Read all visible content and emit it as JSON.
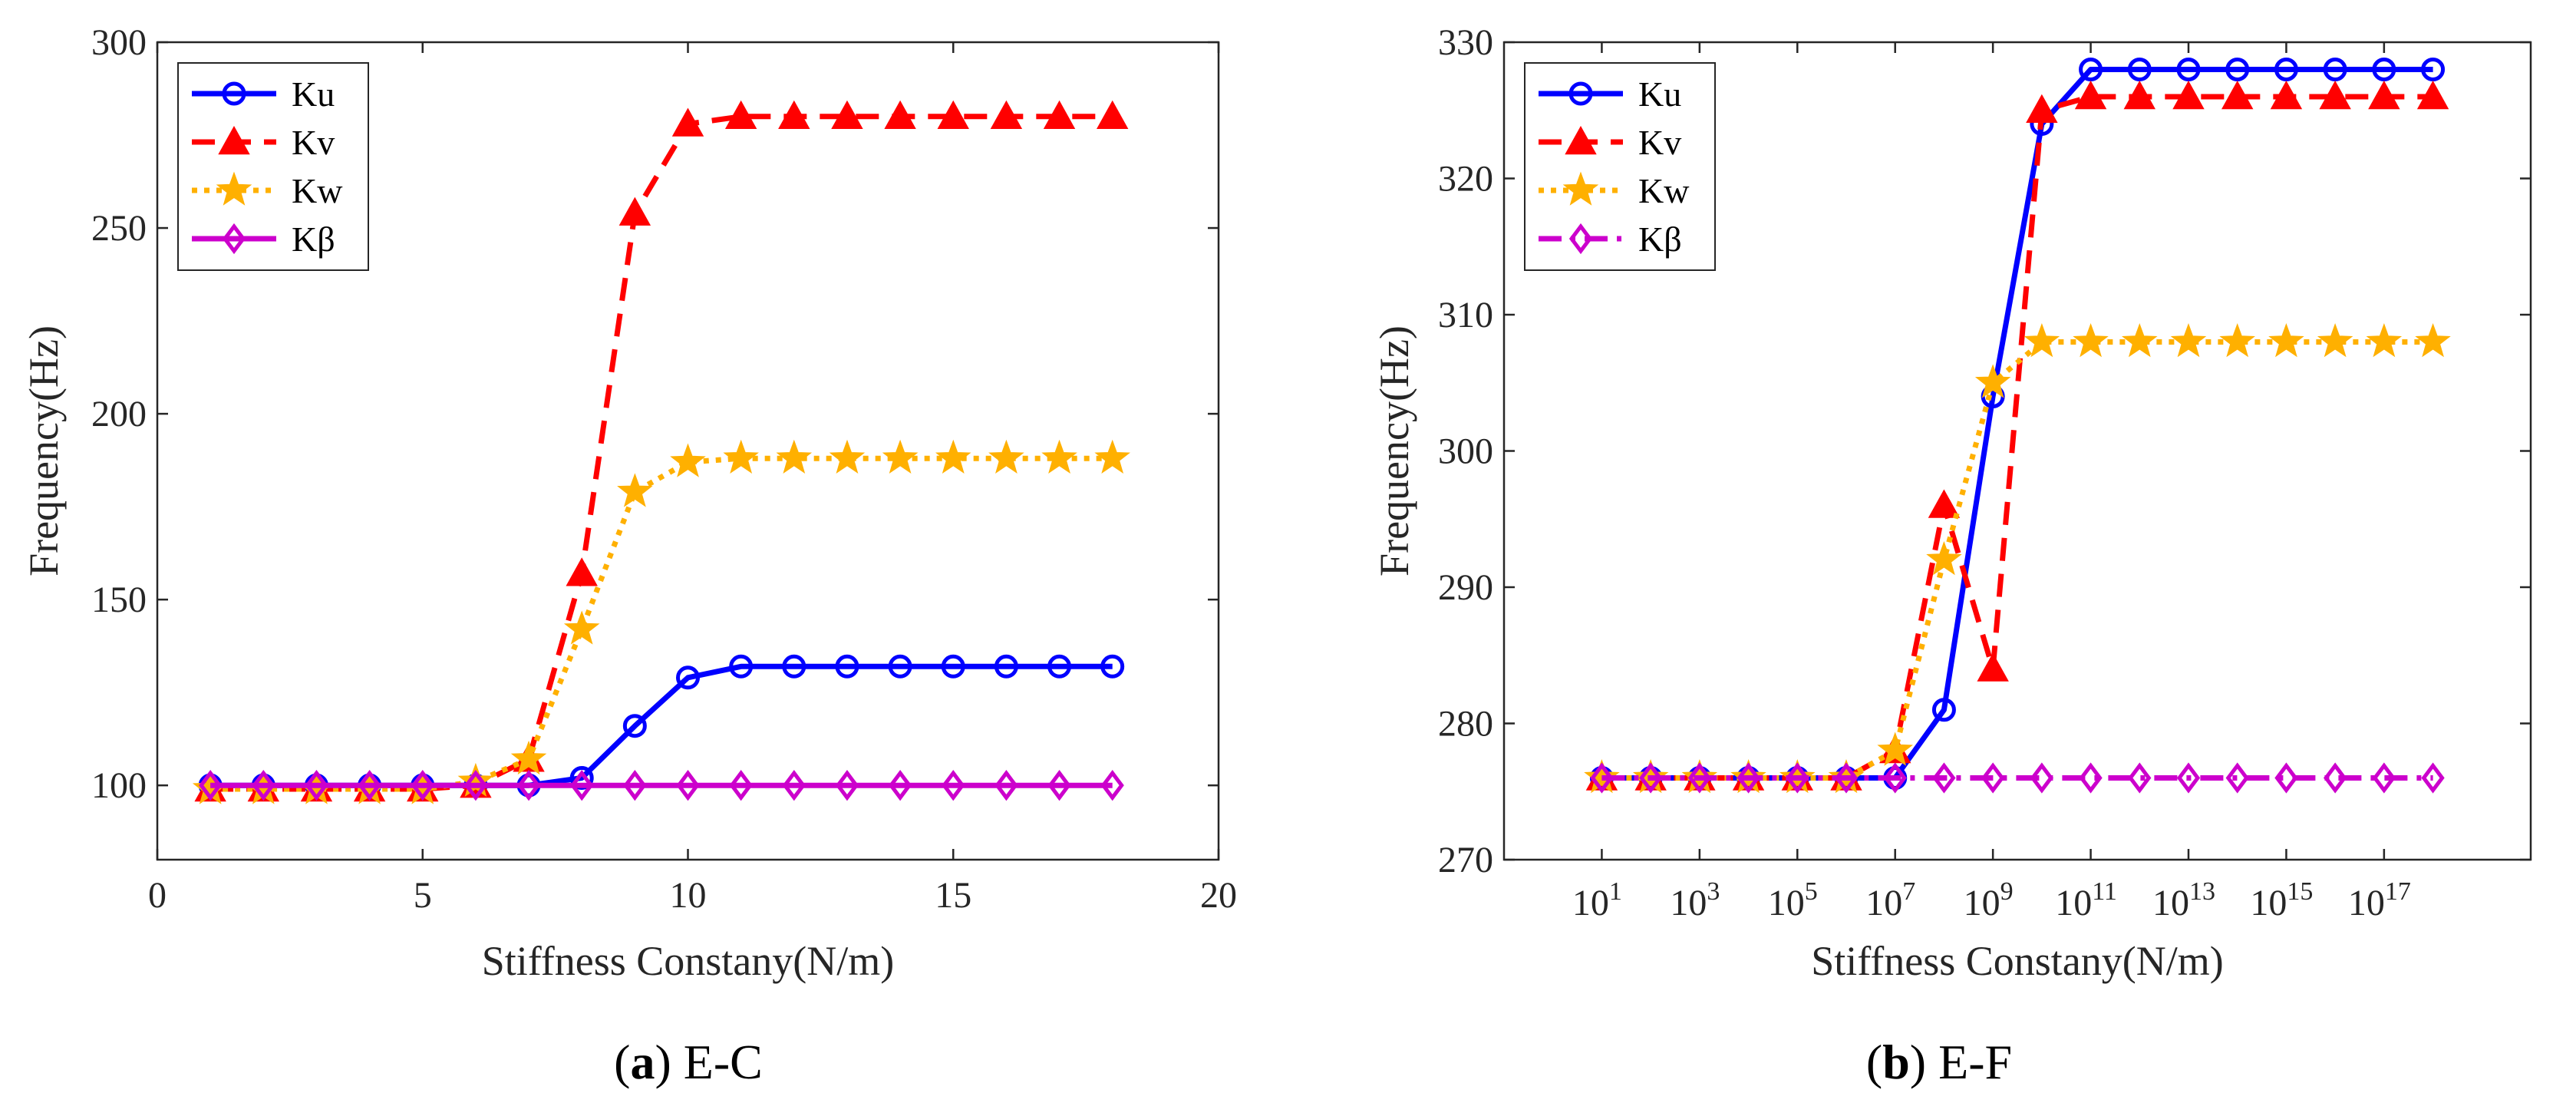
{
  "colors": {
    "Ku": "#0000ff",
    "Kv": "#ff0000",
    "Kw": "#ffb000",
    "Kbeta": "#cc00cc",
    "axis": "#262626"
  },
  "chart_data": [
    {
      "type": "line",
      "id": "a",
      "caption_label": "a",
      "caption_text": "E-C",
      "xlabel": "Stiffness Constany(N/m)",
      "ylabel": "Frequency(Hz)",
      "xlim": [
        0,
        20
      ],
      "ylim": [
        80,
        300
      ],
      "x_scale": "linear",
      "xticks": [
        0,
        5,
        10,
        15,
        20
      ],
      "xtick_labels": [
        "0",
        "5",
        "10",
        "15",
        "20"
      ],
      "yticks": [
        100,
        150,
        200,
        250,
        300
      ],
      "ytick_labels": [
        "100",
        "150",
        "200",
        "250",
        "300"
      ],
      "legend_position": "top-left",
      "x": [
        1,
        2,
        3,
        4,
        5,
        6,
        7,
        8,
        9,
        10,
        11,
        12,
        13,
        14,
        15,
        16,
        17,
        18
      ],
      "series": [
        {
          "name": "Ku",
          "key": "Ku",
          "marker": "circle",
          "dash": "solid",
          "values": [
            100,
            100,
            100,
            100,
            100,
            100,
            100,
            102,
            116,
            129,
            132,
            132,
            132,
            132,
            132,
            132,
            132,
            132
          ]
        },
        {
          "name": "Kv",
          "key": "Kv",
          "marker": "triangle",
          "dash": "dashed",
          "values": [
            99,
            99,
            99,
            99,
            99,
            100,
            107,
            157,
            254,
            278,
            280,
            280,
            280,
            280,
            280,
            280,
            280,
            280
          ]
        },
        {
          "name": "Kw",
          "key": "Kw",
          "marker": "star",
          "dash": "dotted",
          "values": [
            99,
            99,
            99,
            99,
            99,
            101,
            107,
            142,
            179,
            187,
            188,
            188,
            188,
            188,
            188,
            188,
            188,
            188
          ]
        },
        {
          "name": "Kβ",
          "key": "Kbeta",
          "marker": "diamond",
          "dash": "solid",
          "values": [
            100,
            100,
            100,
            100,
            100,
            100,
            100,
            100,
            100,
            100,
            100,
            100,
            100,
            100,
            100,
            100,
            100,
            100
          ]
        }
      ]
    },
    {
      "type": "line",
      "id": "b",
      "caption_label": "b",
      "caption_text": "E-F",
      "xlabel": "Stiffness Constany(N/m)",
      "ylabel": "Frequency(Hz)",
      "xlim": [
        -1,
        20
      ],
      "ylim": [
        270,
        330
      ],
      "x_scale": "log10 exponent",
      "xticks": [
        1,
        3,
        5,
        7,
        9,
        11,
        13,
        15,
        17
      ],
      "xtick_bases": [
        "10",
        "10",
        "10",
        "10",
        "10",
        "10",
        "10",
        "10",
        "10"
      ],
      "xtick_exponents": [
        "1",
        "3",
        "5",
        "7",
        "9",
        "11",
        "13",
        "15",
        "17"
      ],
      "yticks": [
        270,
        280,
        290,
        300,
        310,
        320,
        330
      ],
      "ytick_labels": [
        "270",
        "280",
        "290",
        "300",
        "310",
        "320",
        "330"
      ],
      "legend_position": "top-left",
      "x": [
        1,
        2,
        3,
        4,
        5,
        6,
        7,
        8,
        9,
        10,
        11,
        12,
        13,
        14,
        15,
        16,
        17,
        18
      ],
      "series": [
        {
          "name": "Ku",
          "key": "Ku",
          "marker": "circle",
          "dash": "solid",
          "values": [
            276,
            276,
            276,
            276,
            276,
            276,
            276,
            281,
            304,
            324,
            328,
            328,
            328,
            328,
            328,
            328,
            328,
            328
          ]
        },
        {
          "name": "Kv",
          "key": "Kv",
          "marker": "triangle",
          "dash": "dashed",
          "values": [
            276,
            276,
            276,
            276,
            276,
            276,
            278,
            296,
            284,
            325,
            326,
            326,
            326,
            326,
            326,
            326,
            326,
            326
          ]
        },
        {
          "name": "Kw",
          "key": "Kw",
          "marker": "star",
          "dash": "dotted",
          "values": [
            276,
            276,
            276,
            276,
            276,
            276,
            278,
            292,
            305,
            308,
            308,
            308,
            308,
            308,
            308,
            308,
            308,
            308
          ]
        },
        {
          "name": "Kβ",
          "key": "Kbeta",
          "marker": "diamond",
          "dash": "dashdot",
          "values": [
            276,
            276,
            276,
            276,
            276,
            276,
            276,
            276,
            276,
            276,
            276,
            276,
            276,
            276,
            276,
            276,
            276,
            276
          ]
        }
      ]
    }
  ]
}
